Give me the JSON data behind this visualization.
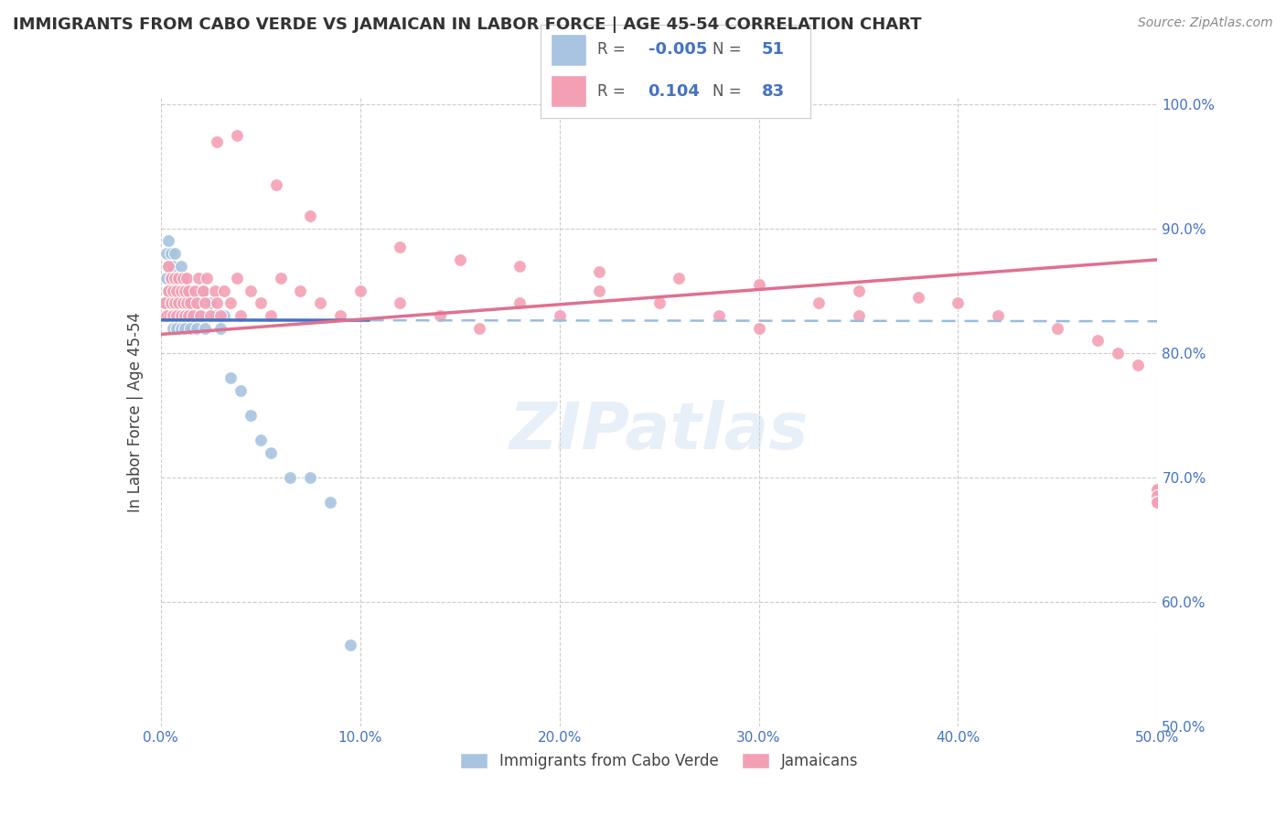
{
  "title": "IMMIGRANTS FROM CABO VERDE VS JAMAICAN IN LABOR FORCE | AGE 45-54 CORRELATION CHART",
  "source": "Source: ZipAtlas.com",
  "ylabel": "In Labor Force | Age 45-54",
  "xmin": 0.0,
  "xmax": 0.5,
  "ymin": 0.5,
  "ymax": 1.005,
  "blue_color": "#a8c4e0",
  "pink_color": "#f4a0b4",
  "blue_line_color": "#4472c4",
  "pink_line_color": "#e07090",
  "dashed_line_color": "#99bbdd",
  "watermark": "ZIPatlas",
  "legend_R_blue": "-0.005",
  "legend_N_blue": "51",
  "legend_R_pink": "0.104",
  "legend_N_pink": "83",
  "blue_x": [
    0.002,
    0.003,
    0.003,
    0.004,
    0.004,
    0.004,
    0.005,
    0.005,
    0.005,
    0.006,
    0.006,
    0.006,
    0.007,
    0.007,
    0.007,
    0.008,
    0.008,
    0.008,
    0.009,
    0.009,
    0.01,
    0.01,
    0.01,
    0.011,
    0.011,
    0.012,
    0.012,
    0.013,
    0.013,
    0.014,
    0.015,
    0.016,
    0.017,
    0.018,
    0.019,
    0.02,
    0.021,
    0.022,
    0.025,
    0.027,
    0.03,
    0.032,
    0.035,
    0.04,
    0.045,
    0.05,
    0.055,
    0.065,
    0.075,
    0.085,
    0.095
  ],
  "blue_y": [
    0.84,
    0.86,
    0.88,
    0.85,
    0.87,
    0.89,
    0.83,
    0.86,
    0.88,
    0.82,
    0.84,
    0.87,
    0.83,
    0.85,
    0.88,
    0.82,
    0.84,
    0.86,
    0.83,
    0.85,
    0.82,
    0.84,
    0.87,
    0.83,
    0.85,
    0.82,
    0.84,
    0.83,
    0.85,
    0.83,
    0.82,
    0.84,
    0.83,
    0.82,
    0.84,
    0.83,
    0.85,
    0.82,
    0.84,
    0.83,
    0.82,
    0.83,
    0.78,
    0.77,
    0.75,
    0.73,
    0.72,
    0.7,
    0.7,
    0.68,
    0.565
  ],
  "pink_x": [
    0.002,
    0.003,
    0.004,
    0.004,
    0.005,
    0.005,
    0.006,
    0.006,
    0.007,
    0.007,
    0.008,
    0.008,
    0.009,
    0.009,
    0.01,
    0.01,
    0.011,
    0.011,
    0.012,
    0.012,
    0.013,
    0.013,
    0.014,
    0.014,
    0.015,
    0.016,
    0.017,
    0.018,
    0.019,
    0.02,
    0.021,
    0.022,
    0.023,
    0.025,
    0.027,
    0.028,
    0.03,
    0.032,
    0.035,
    0.038,
    0.04,
    0.045,
    0.05,
    0.055,
    0.06,
    0.07,
    0.08,
    0.09,
    0.1,
    0.12,
    0.14,
    0.16,
    0.18,
    0.2,
    0.22,
    0.25,
    0.28,
    0.3,
    0.33,
    0.35,
    0.038,
    0.028,
    0.058,
    0.075,
    0.12,
    0.15,
    0.18,
    0.22,
    0.26,
    0.3,
    0.35,
    0.38,
    0.4,
    0.42,
    0.45,
    0.47,
    0.48,
    0.49,
    0.5,
    0.5,
    0.5,
    0.5,
    0.5
  ],
  "pink_y": [
    0.84,
    0.83,
    0.85,
    0.87,
    0.84,
    0.86,
    0.83,
    0.85,
    0.84,
    0.86,
    0.83,
    0.85,
    0.84,
    0.86,
    0.83,
    0.85,
    0.84,
    0.86,
    0.83,
    0.85,
    0.84,
    0.86,
    0.83,
    0.85,
    0.84,
    0.83,
    0.85,
    0.84,
    0.86,
    0.83,
    0.85,
    0.84,
    0.86,
    0.83,
    0.85,
    0.84,
    0.83,
    0.85,
    0.84,
    0.86,
    0.83,
    0.85,
    0.84,
    0.83,
    0.86,
    0.85,
    0.84,
    0.83,
    0.85,
    0.84,
    0.83,
    0.82,
    0.84,
    0.83,
    0.85,
    0.84,
    0.83,
    0.82,
    0.84,
    0.83,
    0.975,
    0.97,
    0.935,
    0.91,
    0.885,
    0.875,
    0.87,
    0.865,
    0.86,
    0.855,
    0.85,
    0.845,
    0.84,
    0.83,
    0.82,
    0.81,
    0.8,
    0.79,
    0.69,
    0.69,
    0.685,
    0.68,
    0.68
  ]
}
